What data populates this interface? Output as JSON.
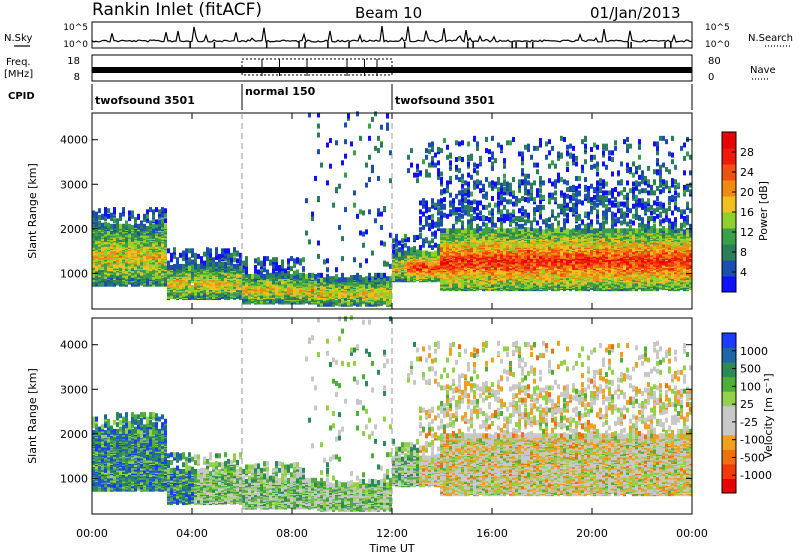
{
  "header": {
    "station": "Rankin Inlet (fitACF)",
    "beam": "Beam 10",
    "date": "01/Jan/2013"
  },
  "noise_panel": {
    "left_label": "N.Sky",
    "right_label": "N.Search",
    "left_ticks": [
      "10^5",
      "10^0"
    ],
    "right_ticks": [
      "10^5",
      "10^0"
    ]
  },
  "freq_panel": {
    "left_label_1": "Freq.",
    "left_label_2": "[MHz]",
    "right_label": "Nave",
    "left_ticks": [
      "18",
      "8"
    ],
    "right_ticks": [
      "80",
      "0"
    ]
  },
  "cpid": {
    "label": "CPID",
    "segments": [
      {
        "name": "twofsound 3501",
        "start": 0,
        "end": 6
      },
      {
        "name": "normal 150",
        "start": 6,
        "end": 12
      },
      {
        "name": "twofsound 3501",
        "start": 12,
        "end": 24
      }
    ]
  },
  "colors": {
    "power_scale": [
      "#1010ff",
      "#1a4fb0",
      "#2c7d5a",
      "#3aa048",
      "#8fd02a",
      "#f0c020",
      "#f08a10",
      "#f05010",
      "#f01a0a",
      "#e80000"
    ],
    "velocity_scale": [
      "#1a3cff",
      "#1f66a8",
      "#2c8a58",
      "#4fae3a",
      "#94d04a",
      "#c8c8c8",
      "#c8c8c8",
      "#f0a020",
      "#f07010",
      "#f03a0a",
      "#e80000"
    ]
  },
  "chart_data": [
    {
      "type": "heatmap",
      "title": "Power",
      "xlabel": "Time UT",
      "ylabel": "Slant Range [km]",
      "x_ticks": [
        "00:00",
        "04:00",
        "08:00",
        "12:00",
        "16:00",
        "20:00",
        "00:00"
      ],
      "x_tick_hours": [
        0,
        4,
        8,
        12,
        16,
        20,
        24
      ],
      "xlim": [
        0,
        24
      ],
      "y_ticks": [
        1000,
        2000,
        3000,
        4000
      ],
      "ylim": [
        200,
        4600
      ],
      "colorbar_label": "Power [dB]",
      "colorbar_ticks": [
        4,
        8,
        12,
        16,
        20,
        24,
        28
      ],
      "colorbar_range": [
        0,
        30
      ],
      "mode_boundaries": [
        6,
        12
      ]
    },
    {
      "type": "heatmap",
      "title": "Velocity",
      "xlabel": "Time UT",
      "ylabel": "Slant Range [km]",
      "x_ticks": [
        "00:00",
        "04:00",
        "08:00",
        "12:00",
        "16:00",
        "20:00",
        "00:00"
      ],
      "x_tick_hours": [
        0,
        4,
        8,
        12,
        16,
        20,
        24
      ],
      "xlim": [
        0,
        24
      ],
      "y_ticks": [
        1000,
        2000,
        3000,
        4000
      ],
      "ylim": [
        200,
        4600
      ],
      "colorbar_label": "Velocity [m s⁻¹]",
      "colorbar_ticks": [
        "1000",
        "500",
        "100",
        "25",
        "-25",
        "-100",
        "-500",
        "-1000"
      ],
      "mode_boundaries": [
        6,
        12
      ]
    }
  ]
}
